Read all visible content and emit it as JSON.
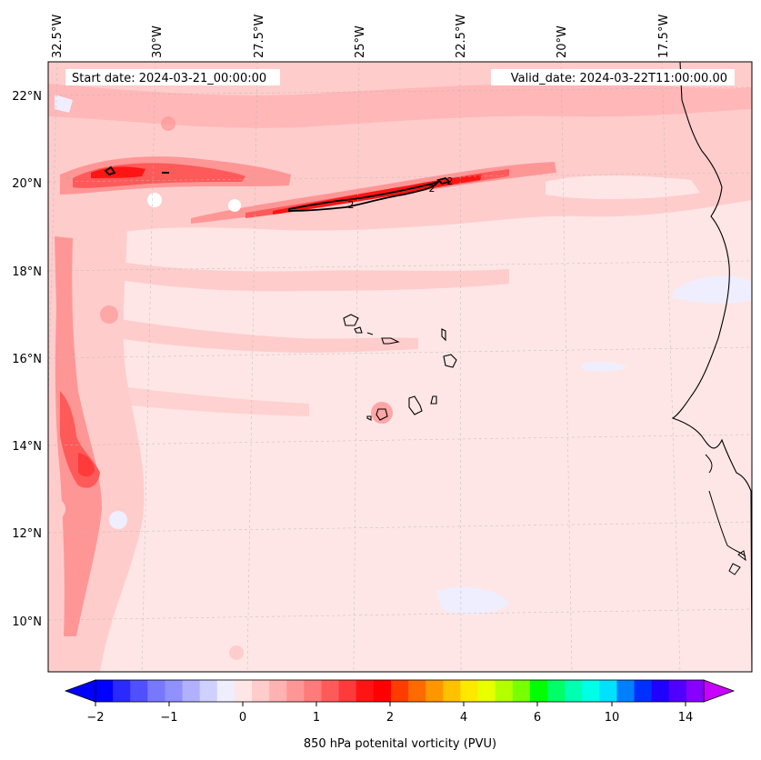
{
  "map": {
    "start_label": "Start date: 2024-03-21_00:00:00",
    "valid_label": "Valid_date: 2024-03-22T11:00:00.00",
    "lon_labels": [
      "32.5°W",
      "30°W",
      "27.5°W",
      "25°W",
      "22.5°W",
      "20°W",
      "17.5°W"
    ],
    "lat_labels": [
      "22°N",
      "20°N",
      "18°N",
      "16°N",
      "14°N",
      "12°N",
      "10°N"
    ],
    "contour_labels": [
      "2",
      "2",
      "2"
    ]
  },
  "colorbar": {
    "label": "850 hPa potenital vorticity (PVU)",
    "tick_labels": [
      "−2",
      "−1",
      "0",
      "1",
      "2",
      "4",
      "6",
      "10",
      "14"
    ],
    "colors": [
      "#0000ff",
      "#2a2aff",
      "#5050ff",
      "#7878ff",
      "#9090ff",
      "#b0b0ff",
      "#d0d0ff",
      "#eeeeff",
      "#ffe6e6",
      "#ffcccc",
      "#ffb2b2",
      "#ff9696",
      "#ff7a7a",
      "#ff5a5a",
      "#ff3a3a",
      "#ff1414",
      "#ff0000",
      "#ff3c00",
      "#ff6a00",
      "#ff9600",
      "#ffc000",
      "#ffe800",
      "#e8ff00",
      "#b4ff00",
      "#78ff00",
      "#00ff00",
      "#00ff66",
      "#00ffb0",
      "#00ffe6",
      "#00e0ff",
      "#0080ff",
      "#0030ff",
      "#2000ff",
      "#5000ff",
      "#8800ff"
    ],
    "under_color": "#0000ff",
    "over_color": "#c800ff"
  },
  "colors": {
    "background_field": "#ffe6e6",
    "light_band": "#ffcccc",
    "mid_band": "#ff9696",
    "strong_band": "#ff3a3a",
    "coast": "#000000"
  }
}
